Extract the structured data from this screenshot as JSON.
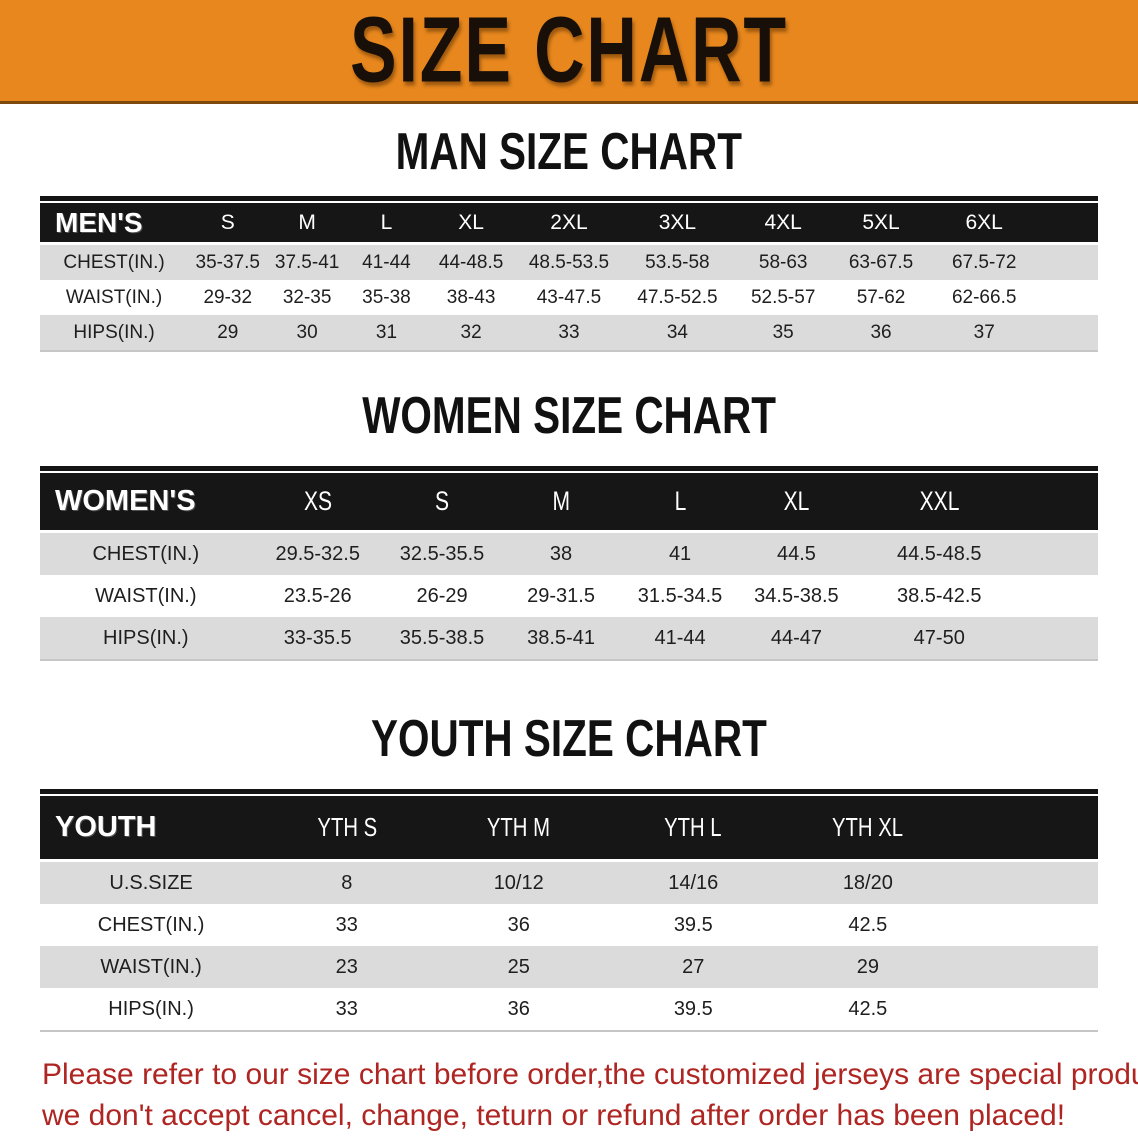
{
  "banner": {
    "title": "SIZE CHART"
  },
  "colors": {
    "banner_bg": "#E7871D",
    "table_header_bg": "#161616",
    "row_shade": "#DBDBDB",
    "note_red": "#AE2522"
  },
  "sections": [
    {
      "heading": "MAN SIZE CHART",
      "table": {
        "label": "MEN'S",
        "columns": [
          "S",
          "M",
          "L",
          "XL",
          "2XL",
          "3XL",
          "4XL",
          "5XL",
          "6XL"
        ],
        "rows": [
          {
            "label": "CHEST(IN.)",
            "values": [
              "35-37.5",
              "37.5-41",
              "41-44",
              "44-48.5",
              "48.5-53.5",
              "53.5-58",
              "58-63",
              "63-67.5",
              "67.5-72"
            ]
          },
          {
            "label": "WAIST(IN.)",
            "values": [
              "29-32",
              "32-35",
              "35-38",
              "38-43",
              "43-47.5",
              "47.5-52.5",
              "52.5-57",
              "57-62",
              "62-66.5"
            ]
          },
          {
            "label": "HIPS(IN.)",
            "values": [
              "29",
              "30",
              "31",
              "32",
              "33",
              "34",
              "35",
              "36",
              "37"
            ]
          }
        ]
      }
    },
    {
      "heading": "WOMEN SIZE CHART",
      "table": {
        "label": "WOMEN'S",
        "columns": [
          "XS",
          "S",
          "M",
          "L",
          "XL",
          "XXL"
        ],
        "rows": [
          {
            "label": "CHEST(IN.)",
            "values": [
              "29.5-32.5",
              "32.5-35.5",
              "38",
              "41",
              "44.5",
              "44.5-48.5"
            ]
          },
          {
            "label": "WAIST(IN.)",
            "values": [
              "23.5-26",
              "26-29",
              "29-31.5",
              "31.5-34.5",
              "34.5-38.5",
              "38.5-42.5"
            ]
          },
          {
            "label": "HIPS(IN.)",
            "values": [
              "33-35.5",
              "35.5-38.5",
              "38.5-41",
              "41-44",
              "44-47",
              "47-50"
            ]
          }
        ]
      }
    },
    {
      "heading": "YOUTH SIZE CHART",
      "table": {
        "label": "YOUTH",
        "columns": [
          "YTH S",
          "YTH M",
          "YTH L",
          "YTH XL"
        ],
        "rows": [
          {
            "label": "U.S.SIZE",
            "values": [
              "8",
              "10/12",
              "14/16",
              "18/20"
            ]
          },
          {
            "label": "CHEST(IN.)",
            "values": [
              "33",
              "36",
              "39.5",
              "42.5"
            ]
          },
          {
            "label": "WAIST(IN.)",
            "values": [
              "23",
              "25",
              "27",
              "29"
            ]
          },
          {
            "label": "HIPS(IN.)",
            "values": [
              "33",
              "36",
              "39.5",
              "42.5"
            ]
          }
        ]
      }
    }
  ],
  "note": {
    "line1": "Please refer to our size chart before order,the customized jerseys are special products,",
    "line2": "we don't accept cancel, change, teturn or refund after order has been placed!"
  }
}
